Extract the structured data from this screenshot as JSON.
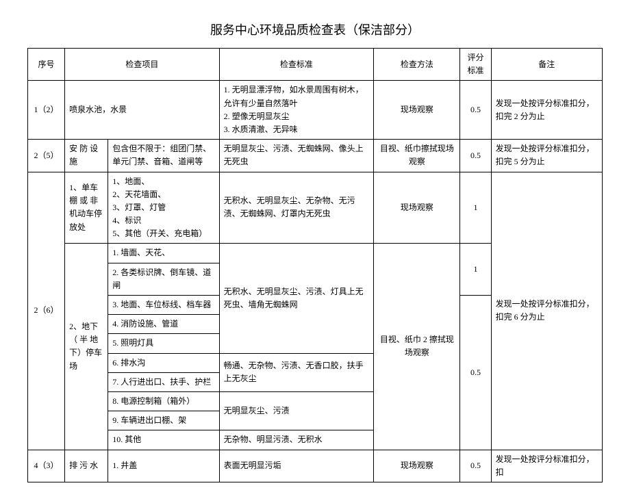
{
  "title": "服务中心环境品质检查表（保洁部分）",
  "headers": {
    "seq": "序号",
    "item": "检查项目",
    "standard": "检查标准",
    "method": "检查方法",
    "score": "评分标准",
    "note": "备注"
  },
  "rows": {
    "r1": {
      "seq": "1（2）",
      "item": "喷泉水池，水景",
      "standard": "1. 无明显漂浮物，如水景周围有树木，允许有少量自然落叶\n2. 塑像无明显灰尘\n3. 水质清澈、无异味",
      "method": "现场观察",
      "score": "0.5",
      "note": "发现一处按评分标准扣分，扣完 2 分为止"
    },
    "r2": {
      "seq": "2（5）",
      "sub1": "安 防 设施",
      "sub2": "包含但不限于：组团门禁、单元门禁、音箱、道闸等",
      "standard": "无明显灰尘、污渍、无蜘蛛网、像头上无死虫",
      "method": "目视、纸巾擦拭现场观察",
      "score": "0.5",
      "note": "发现一处按评分标准扣分，扣完 5 分为止"
    },
    "r3": {
      "seq": "2（6）",
      "s1_label": "1、单车棚 或 非机动车停放处",
      "s1_items": "1、地面、\n2、天花墙面、\n3、灯罩、灯管\n4、标识\n5、其他（开关、充电箱）",
      "s1_standard": "无积水、无明显灰尘、无杂物、无污渍、无蜘蛛网、灯罩内无死虫",
      "s1_method": "现场观察",
      "s1_score": "1",
      "s2_label": "2、地下（ 半 地下）停车场",
      "s2_i1": "1. 墙面、天花、",
      "s2_i2": "2. 各类标识牌、倒车镜、道闸",
      "s2_i3": "3. 地面、车位标线、档车器",
      "s2_i4": "4. 消防设施、管道",
      "s2_i5": "5. 照明灯具",
      "s2_i6": "6. 排水沟",
      "s2_i7": "7. 人行进出口、扶手、护栏",
      "s2_i8": "8. 电源控制箱（箱外）",
      "s2_i9": "9. 车辆进出口棚、架",
      "s2_i10": "10. 其他",
      "s2_std_a": "无积水、无明显灰尘、污渍、灯具上无死虫、墙角无蜘蛛网",
      "s2_std_b": "畅通、无杂物、污渍、无香口胶，扶手上无灰尘",
      "s2_std_c": "无明显灰尘、污渍",
      "s2_std_d": "无杂物、明显污渍、无积水",
      "s2_method": "目视、纸巾 2 擦拭现场观察",
      "s2_score_a": "1",
      "s2_score_b": "0.5",
      "note": "发现一处按评分标准扣分，扣完 6 分为止"
    },
    "r4": {
      "seq": "4（3）",
      "sub1": "排 污 水",
      "sub2": "1. 井盖",
      "standard": "表面无明显污垢",
      "method": "现场观察",
      "score": "0.5",
      "note": "发现一处按评分标准扣分，扣"
    }
  }
}
